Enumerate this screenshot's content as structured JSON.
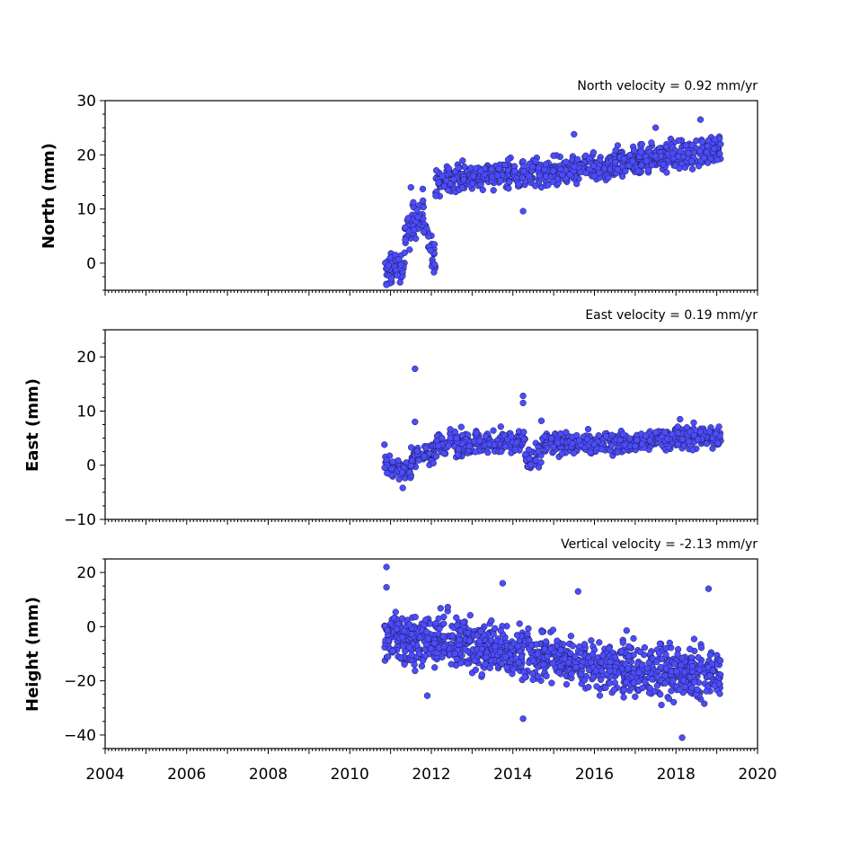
{
  "chart_data": {
    "type": "scatter",
    "x_range": [
      2004,
      2020
    ],
    "x_ticks": [
      "2004",
      "2006",
      "2008",
      "2010",
      "2012",
      "2014",
      "2016",
      "2018",
      "2020"
    ],
    "colors": {
      "marker_fill": "#4c4cff",
      "marker_edge": "#1a1a4a"
    },
    "panels": [
      {
        "title": "North velocity = 0.92 mm/yr",
        "ylabel": "North (mm)",
        "ylim": [
          -5,
          30
        ],
        "y_ticks": [
          "0",
          "10",
          "20",
          "30"
        ],
        "series": [
          {
            "x_start": 2010.85,
            "x_end": 2011.35,
            "y_start": -2,
            "y_end": 0,
            "spread": 2.5,
            "n": 60
          },
          {
            "x_start": 2011.35,
            "x_end": 2011.8,
            "y_start": 5,
            "y_end": 10,
            "spread": 3,
            "n": 60
          },
          {
            "x_start": 2011.8,
            "x_end": 2012.1,
            "y_start": 8,
            "y_end": 0,
            "spread": 3,
            "n": 30
          },
          {
            "x_start": 2012.1,
            "x_end": 2014.0,
            "y_start": 15,
            "y_end": 17,
            "spread": 2.2,
            "n": 220
          },
          {
            "x_start": 2014.0,
            "x_end": 2016.5,
            "y_start": 16,
            "y_end": 18,
            "spread": 2.2,
            "n": 280
          },
          {
            "x_start": 2016.5,
            "x_end": 2019.1,
            "y_start": 18.5,
            "y_end": 21,
            "spread": 2.3,
            "n": 300
          },
          {
            "x": 2011.5,
            "y": 14
          },
          {
            "x": 2014.25,
            "y": 9.6
          },
          {
            "x": 2018.6,
            "y": 26.5
          },
          {
            "x": 2015.5,
            "y": 23.8
          },
          {
            "x": 2017.5,
            "y": 25
          },
          {
            "x": 2010.9,
            "y": -4
          }
        ]
      },
      {
        "title": "East velocity = 0.19 mm/yr",
        "ylabel": "East (mm)",
        "ylim": [
          -10,
          25
        ],
        "y_ticks": [
          "−10",
          "0",
          "10",
          "20"
        ],
        "series": [
          {
            "x_start": 2010.85,
            "x_end": 2011.5,
            "y_start": 0,
            "y_end": -1,
            "spread": 1.8,
            "n": 70
          },
          {
            "x_start": 2011.5,
            "x_end": 2012.1,
            "y_start": 1,
            "y_end": 2.5,
            "spread": 1.8,
            "n": 60
          },
          {
            "x_start": 2012.1,
            "x_end": 2014.3,
            "y_start": 4,
            "y_end": 4.5,
            "spread": 1.8,
            "n": 240
          },
          {
            "x_start": 2014.3,
            "x_end": 2014.7,
            "y_start": 1,
            "y_end": 2,
            "spread": 1.8,
            "n": 45
          },
          {
            "x_start": 2014.7,
            "x_end": 2017.0,
            "y_start": 4,
            "y_end": 4,
            "spread": 1.7,
            "n": 260
          },
          {
            "x_start": 2017.0,
            "x_end": 2019.1,
            "y_start": 4.5,
            "y_end": 5.5,
            "spread": 1.7,
            "n": 240
          },
          {
            "x": 2011.6,
            "y": 17.8
          },
          {
            "x": 2014.25,
            "y": 12.8
          },
          {
            "x": 2014.25,
            "y": 11.5
          },
          {
            "x": 2011.6,
            "y": 8
          },
          {
            "x": 2014.7,
            "y": 8.2
          },
          {
            "x": 2011.3,
            "y": -4.2
          },
          {
            "x": 2010.85,
            "y": 3.8
          },
          {
            "x": 2018.1,
            "y": 8.5
          }
        ]
      },
      {
        "title": "Vertical velocity = -2.13 mm/yr",
        "ylabel": "Height (mm)",
        "ylim": [
          -45,
          25
        ],
        "y_ticks": [
          "−40",
          "−20",
          "0",
          "20"
        ],
        "series": [
          {
            "x_start": 2010.85,
            "x_end": 2013.0,
            "y_start": -4,
            "y_end": -6,
            "spread": 8,
            "n": 330
          },
          {
            "x_start": 2013.0,
            "x_end": 2015.5,
            "y_start": -8,
            "y_end": -12,
            "spread": 8,
            "n": 380
          },
          {
            "x_start": 2015.5,
            "x_end": 2019.1,
            "y_start": -14,
            "y_end": -18,
            "spread": 8.5,
            "n": 480
          },
          {
            "x": 2010.9,
            "y": 22
          },
          {
            "x": 2010.9,
            "y": 14.5
          },
          {
            "x": 2013.75,
            "y": 16
          },
          {
            "x": 2018.8,
            "y": 14
          },
          {
            "x": 2015.6,
            "y": 13
          },
          {
            "x": 2018.15,
            "y": -41
          },
          {
            "x": 2014.25,
            "y": -34
          },
          {
            "x": 2011.9,
            "y": -25.5
          }
        ]
      }
    ]
  }
}
